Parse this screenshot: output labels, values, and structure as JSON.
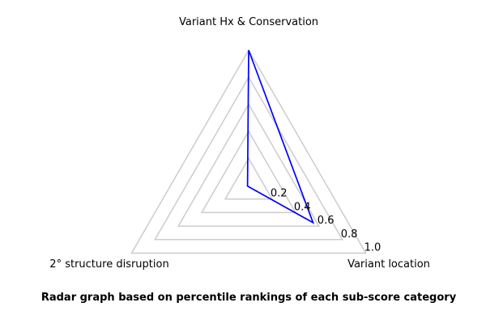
{
  "chart_data": {
    "type": "radar",
    "axes": [
      "Variant Hx & Conservation",
      "Variant location",
      "2° structure disruption"
    ],
    "series": [
      {
        "values": [
          1.0,
          0.55,
          0.01
        ]
      }
    ],
    "radial_ticks": [
      "0.2",
      "0.4",
      "0.6",
      "0.8",
      "1.0"
    ],
    "radial_tick_values": [
      0.2,
      0.4,
      0.6,
      0.8,
      1.0
    ],
    "rlim": [
      0,
      1.0
    ],
    "grid": true,
    "grid_color": "#cccccc",
    "series_color": "#0000ff",
    "caption": "Radar graph based on percentile rankings of each sub-score category"
  }
}
